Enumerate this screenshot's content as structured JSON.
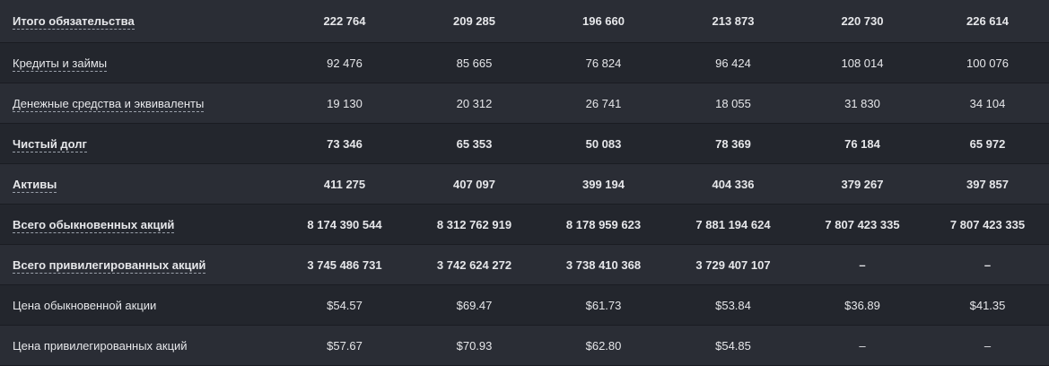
{
  "rows": [
    {
      "label": "Итого обязательства",
      "bold": true,
      "dashed": true,
      "values": [
        "222 764",
        "209 285",
        "196 660",
        "213 873",
        "220 730",
        "226 614"
      ]
    },
    {
      "label": "Кредиты и займы",
      "bold": false,
      "dashed": true,
      "values": [
        "92 476",
        "85 665",
        "76 824",
        "96 424",
        "108 014",
        "100 076"
      ]
    },
    {
      "label": "Денежные средства и эквиваленты",
      "bold": false,
      "dashed": true,
      "values": [
        "19 130",
        "20 312",
        "26 741",
        "18 055",
        "31 830",
        "34 104"
      ]
    },
    {
      "label": "Чистый долг",
      "bold": true,
      "dashed": true,
      "values": [
        "73 346",
        "65 353",
        "50 083",
        "78 369",
        "76 184",
        "65 972"
      ]
    },
    {
      "label": "Активы",
      "bold": true,
      "dashed": true,
      "values": [
        "411 275",
        "407 097",
        "399 194",
        "404 336",
        "379 267",
        "397 857"
      ]
    },
    {
      "label": "Всего обыкновенных акций",
      "bold": true,
      "dashed": true,
      "values": [
        "8 174 390 544",
        "8 312 762 919",
        "8 178 959 623",
        "7 881 194 624",
        "7 807 423 335",
        "7 807 423 335"
      ]
    },
    {
      "label": "Всего привилегированных акций",
      "bold": true,
      "dashed": true,
      "values": [
        "3 745 486 731",
        "3 742 624 272",
        "3 738 410 368",
        "3 729 407 107",
        "–",
        "–"
      ]
    },
    {
      "label": "Цена обыкновенной акции",
      "bold": false,
      "dashed": false,
      "values": [
        "$54.57",
        "$69.47",
        "$61.73",
        "$53.84",
        "$36.89",
        "$41.35"
      ]
    },
    {
      "label": "Цена привилегированных акций",
      "bold": false,
      "dashed": false,
      "values": [
        "$57.67",
        "$70.93",
        "$62.80",
        "$54.85",
        "–",
        "–"
      ]
    }
  ]
}
